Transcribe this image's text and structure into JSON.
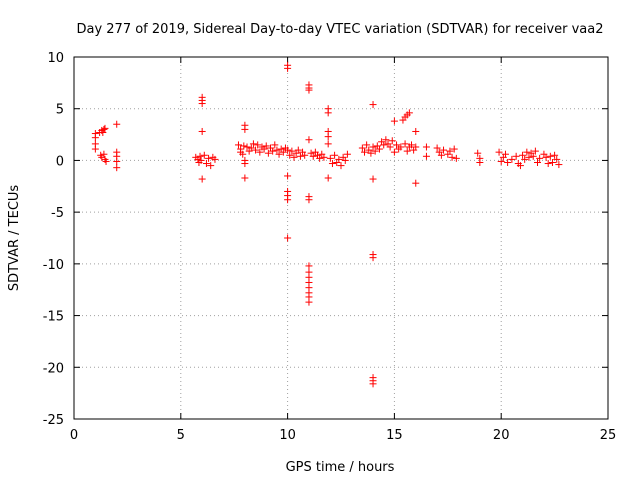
{
  "chart_data": {
    "type": "scatter",
    "title": "Day 277 of 2019, Sidereal Day-to-day VTEC variation (SDTVAR) for receiver vaa2",
    "xlabel": "GPS time / hours",
    "ylabel": "SDTVAR / TECUs",
    "xlim": [
      0,
      25
    ],
    "ylim": [
      -25,
      10
    ],
    "xticks": [
      0,
      5,
      10,
      15,
      20,
      25
    ],
    "yticks": [
      -25,
      -20,
      -15,
      -10,
      -5,
      0,
      5,
      10
    ],
    "grid": true,
    "marker": "plus",
    "series": [
      {
        "name": "SDTVAR",
        "color": "#ff0000",
        "points": [
          [
            1.0,
            2.6
          ],
          [
            1.0,
            2.2
          ],
          [
            1.0,
            1.6
          ],
          [
            1.0,
            1.1
          ],
          [
            1.2,
            2.7
          ],
          [
            1.3,
            2.9
          ],
          [
            1.35,
            2.7
          ],
          [
            1.4,
            3.0
          ],
          [
            1.45,
            3.1
          ],
          [
            1.25,
            0.5
          ],
          [
            1.3,
            0.3
          ],
          [
            1.4,
            0.6
          ],
          [
            1.45,
            0.1
          ],
          [
            1.5,
            -0.1
          ],
          [
            2.0,
            3.5
          ],
          [
            2.0,
            0.8
          ],
          [
            2.0,
            0.4
          ],
          [
            2.0,
            -0.1
          ],
          [
            2.0,
            -0.7
          ],
          [
            5.7,
            0.3
          ],
          [
            5.8,
            0.1
          ],
          [
            5.85,
            -0.2
          ],
          [
            5.9,
            0.4
          ],
          [
            5.95,
            0.0
          ],
          [
            6.0,
            6.1
          ],
          [
            6.0,
            5.8
          ],
          [
            6.0,
            5.5
          ],
          [
            6.0,
            2.8
          ],
          [
            6.0,
            -1.8
          ],
          [
            6.1,
            0.5
          ],
          [
            6.2,
            -0.3
          ],
          [
            6.3,
            0.2
          ],
          [
            6.4,
            -0.5
          ],
          [
            6.5,
            0.3
          ],
          [
            6.6,
            0.1
          ],
          [
            7.7,
            1.5
          ],
          [
            7.8,
            1.1
          ],
          [
            7.8,
            0.8
          ],
          [
            7.9,
            0.6
          ],
          [
            7.95,
            1.4
          ],
          [
            8.0,
            3.4
          ],
          [
            8.0,
            3.0
          ],
          [
            8.0,
            0.0
          ],
          [
            8.0,
            -0.3
          ],
          [
            8.0,
            -1.7
          ],
          [
            8.1,
            1.3
          ],
          [
            8.2,
            0.9
          ],
          [
            8.3,
            1.2
          ],
          [
            8.4,
            1.6
          ],
          [
            8.5,
            1.0
          ],
          [
            8.6,
            1.5
          ],
          [
            8.7,
            0.8
          ],
          [
            8.8,
            1.3
          ],
          [
            8.9,
            1.1
          ],
          [
            9.0,
            1.4
          ],
          [
            9.1,
            0.7
          ],
          [
            9.2,
            1.2
          ],
          [
            9.3,
            0.9
          ],
          [
            9.4,
            1.5
          ],
          [
            9.5,
            1.0
          ],
          [
            9.6,
            0.6
          ],
          [
            9.7,
            1.1
          ],
          [
            9.8,
            0.8
          ],
          [
            9.9,
            1.2
          ],
          [
            10.0,
            9.2
          ],
          [
            10.0,
            8.9
          ],
          [
            10.0,
            1.0
          ],
          [
            10.0,
            -1.5
          ],
          [
            10.0,
            -3.0
          ],
          [
            10.0,
            -3.4
          ],
          [
            10.0,
            -3.8
          ],
          [
            10.0,
            -7.5
          ],
          [
            10.1,
            0.5
          ],
          [
            10.2,
            0.9
          ],
          [
            10.3,
            0.3
          ],
          [
            10.4,
            0.7
          ],
          [
            10.5,
            1.0
          ],
          [
            10.6,
            0.4
          ],
          [
            10.7,
            0.8
          ],
          [
            10.8,
            0.5
          ],
          [
            11.0,
            7.3
          ],
          [
            11.0,
            7.0
          ],
          [
            11.0,
            6.8
          ],
          [
            11.0,
            2.0
          ],
          [
            11.0,
            -3.5
          ],
          [
            11.0,
            -3.8
          ],
          [
            11.0,
            -10.2
          ],
          [
            11.0,
            -10.8
          ],
          [
            11.0,
            -11.3
          ],
          [
            11.0,
            -11.8
          ],
          [
            11.0,
            -12.3
          ],
          [
            11.0,
            -12.8
          ],
          [
            11.0,
            -13.2
          ],
          [
            11.0,
            -13.7
          ],
          [
            11.1,
            0.7
          ],
          [
            11.2,
            0.4
          ],
          [
            11.3,
            0.8
          ],
          [
            11.4,
            0.5
          ],
          [
            11.5,
            0.2
          ],
          [
            11.6,
            0.6
          ],
          [
            11.7,
            0.3
          ],
          [
            11.9,
            5.0
          ],
          [
            11.9,
            4.6
          ],
          [
            11.9,
            2.8
          ],
          [
            11.9,
            2.3
          ],
          [
            11.9,
            1.6
          ],
          [
            11.9,
            -1.7
          ],
          [
            12.0,
            0.2
          ],
          [
            12.1,
            -0.3
          ],
          [
            12.2,
            0.5
          ],
          [
            12.3,
            -0.2
          ],
          [
            12.4,
            0.1
          ],
          [
            12.5,
            -0.5
          ],
          [
            12.6,
            0.3
          ],
          [
            12.7,
            0.0
          ],
          [
            12.8,
            0.6
          ],
          [
            13.5,
            1.2
          ],
          [
            13.6,
            0.8
          ],
          [
            13.7,
            1.5
          ],
          [
            13.8,
            1.0
          ],
          [
            13.9,
            0.7
          ],
          [
            14.0,
            5.4
          ],
          [
            14.0,
            1.3
          ],
          [
            14.0,
            -1.8
          ],
          [
            14.0,
            -9.1
          ],
          [
            14.0,
            -9.4
          ],
          [
            14.0,
            -21.0
          ],
          [
            14.0,
            -21.3
          ],
          [
            14.0,
            -21.6
          ],
          [
            14.1,
            0.9
          ],
          [
            14.2,
            1.4
          ],
          [
            14.3,
            1.1
          ],
          [
            14.4,
            1.8
          ],
          [
            14.5,
            1.5
          ],
          [
            14.6,
            2.0
          ],
          [
            14.7,
            1.6
          ],
          [
            14.8,
            1.3
          ],
          [
            14.9,
            1.9
          ],
          [
            15.0,
            3.8
          ],
          [
            15.0,
            0.8
          ],
          [
            15.1,
            1.5
          ],
          [
            15.2,
            1.1
          ],
          [
            15.4,
            3.9
          ],
          [
            15.5,
            4.2
          ],
          [
            15.6,
            4.4
          ],
          [
            15.7,
            4.6
          ],
          [
            15.3,
            1.3
          ],
          [
            15.5,
            1.6
          ],
          [
            15.6,
            0.9
          ],
          [
            15.7,
            1.3
          ],
          [
            15.8,
            1.5
          ],
          [
            15.9,
            1.0
          ],
          [
            16.0,
            1.3
          ],
          [
            16.0,
            2.8
          ],
          [
            16.0,
            -2.2
          ],
          [
            16.5,
            1.3
          ],
          [
            16.5,
            0.4
          ],
          [
            17.0,
            1.2
          ],
          [
            17.1,
            0.8
          ],
          [
            17.2,
            0.5
          ],
          [
            17.3,
            1.0
          ],
          [
            17.5,
            0.6
          ],
          [
            17.6,
            0.9
          ],
          [
            17.7,
            0.3
          ],
          [
            17.8,
            1.1
          ],
          [
            17.9,
            0.2
          ],
          [
            18.9,
            0.7
          ],
          [
            19.0,
            0.2
          ],
          [
            19.0,
            -0.2
          ],
          [
            19.9,
            0.8
          ],
          [
            20.0,
            -0.1
          ],
          [
            20.1,
            0.3
          ],
          [
            20.2,
            0.6
          ],
          [
            20.3,
            -0.2
          ],
          [
            20.5,
            0.1
          ],
          [
            20.7,
            0.4
          ],
          [
            20.8,
            -0.3
          ],
          [
            20.9,
            -0.5
          ],
          [
            21.0,
            0.5
          ],
          [
            21.1,
            0.1
          ],
          [
            21.2,
            0.8
          ],
          [
            21.3,
            0.3
          ],
          [
            21.4,
            0.7
          ],
          [
            21.5,
            0.4
          ],
          [
            21.6,
            0.9
          ],
          [
            21.7,
            -0.2
          ],
          [
            21.8,
            0.2
          ],
          [
            22.0,
            0.6
          ],
          [
            22.1,
            0.3
          ],
          [
            22.2,
            -0.3
          ],
          [
            22.3,
            0.4
          ],
          [
            22.4,
            -0.2
          ],
          [
            22.5,
            0.5
          ],
          [
            22.6,
            0.1
          ],
          [
            22.7,
            -0.4
          ]
        ]
      }
    ]
  }
}
